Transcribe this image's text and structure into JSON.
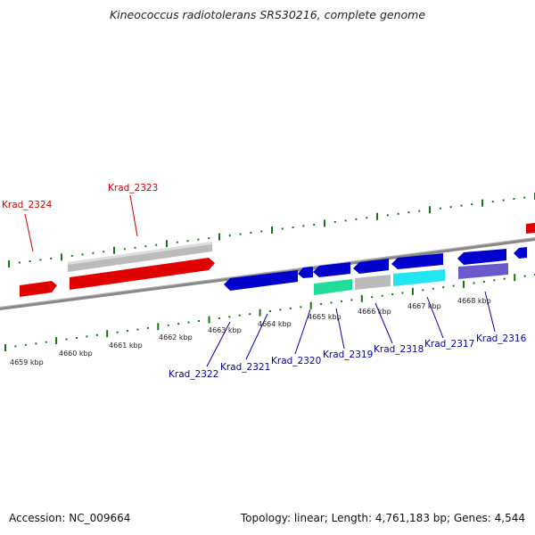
{
  "title": "Kineococcus radiotolerans SRS30216, complete genome",
  "footer": {
    "accession": "Accession: NC_009664",
    "topology": "Topology: linear; Length: 4,761,183 bp; Genes: 4,544"
  },
  "colors": {
    "forward_gene": "#e00000",
    "reverse_gene": "#0000cc",
    "label_forward": "#cc0000",
    "label_reverse": "#0000aa",
    "tick": "#117711",
    "backbone": "#888888",
    "pseudo": "#bbbbbb",
    "green_feature": "#22dd99",
    "cyan_feature": "#22e6f2",
    "purple_feature": "#6a5acd"
  },
  "scale_labels": [
    "4659 kbp",
    "4660 kbp",
    "4661 kbp",
    "4662 kbp",
    "4663 kbp",
    "4664 kbp",
    "4665 kbp",
    "4666 kbp",
    "4667 kbp",
    "4668 kbp"
  ],
  "gene_labels": [
    {
      "text": "Krad_2324",
      "strand": "forward"
    },
    {
      "text": "Krad_2323",
      "strand": "forward"
    },
    {
      "text": "Krad_2322",
      "strand": "reverse"
    },
    {
      "text": "Krad_2321",
      "strand": "reverse"
    },
    {
      "text": "Krad_2320",
      "strand": "reverse"
    },
    {
      "text": "Krad_2319",
      "strand": "reverse"
    },
    {
      "text": "Krad_2318",
      "strand": "reverse"
    },
    {
      "text": "Krad_2317",
      "strand": "reverse"
    },
    {
      "text": "Krad_2316",
      "strand": "reverse"
    }
  ]
}
